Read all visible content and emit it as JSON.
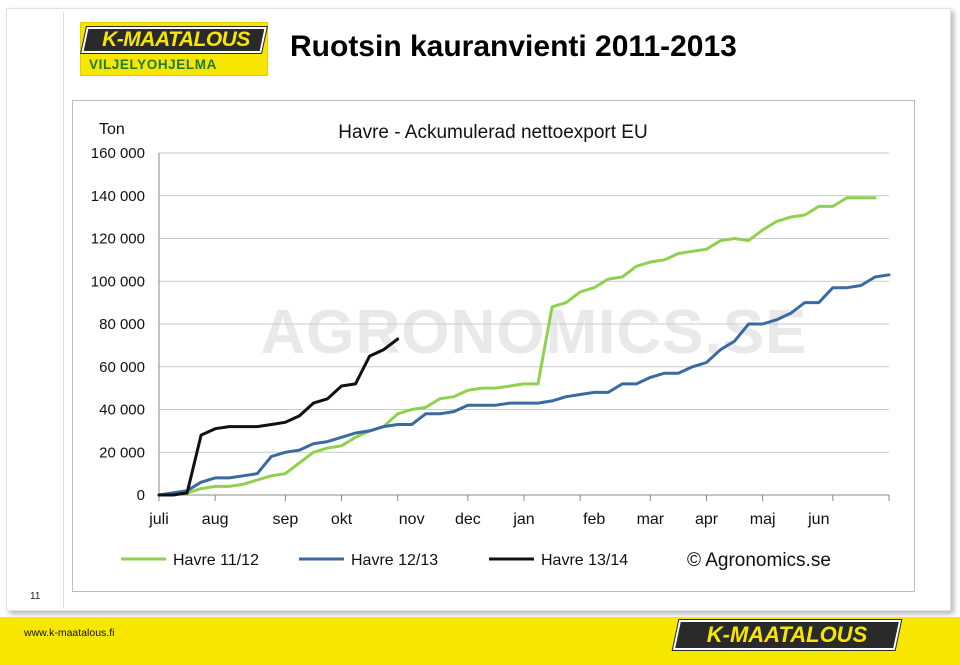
{
  "header": {
    "logo_brand": "K-MAATALOUS",
    "logo_sub": "VILJELYOHJELMA",
    "title": "Ruotsin kauranvienti 2011-2013"
  },
  "slide_number": "11",
  "footer": {
    "url": "www.k-maatalous.fi",
    "logo_brand": "K-MAATALOUS"
  },
  "colors": {
    "green": "#8fd14f",
    "blue": "#3a6aa1",
    "black": "#111111",
    "grid": "#c9c9c9",
    "logo_yellow": "#f6e600"
  },
  "chart_data": {
    "type": "line",
    "title": "Havre - Ackumulerad nettoexport EU",
    "ylabel": "Ton",
    "xlabel": "",
    "ylim": [
      0,
      160000
    ],
    "yticks": [
      0,
      20000,
      40000,
      60000,
      80000,
      100000,
      120000,
      140000,
      160000
    ],
    "ytick_labels": [
      "0",
      "20 000",
      "40 000",
      "60 000",
      "80 000",
      "100 000",
      "120 000",
      "140 000",
      "160 000"
    ],
    "x_unit": "week index from start of July",
    "xlim": [
      0,
      52
    ],
    "month_labels": [
      {
        "label": "juli",
        "x": 0
      },
      {
        "label": "aug",
        "x": 4
      },
      {
        "label": "sep",
        "x": 9
      },
      {
        "label": "okt",
        "x": 13
      },
      {
        "label": "nov",
        "x": 18
      },
      {
        "label": "dec",
        "x": 22
      },
      {
        "label": "jan",
        "x": 26
      },
      {
        "label": "feb",
        "x": 31
      },
      {
        "label": "mar",
        "x": 35
      },
      {
        "label": "apr",
        "x": 39
      },
      {
        "label": "maj",
        "x": 43
      },
      {
        "label": "jun",
        "x": 47
      }
    ],
    "month_ticks": [
      0,
      4,
      9,
      13,
      17,
      22,
      26,
      30,
      35,
      39,
      43,
      48,
      52
    ],
    "grid": true,
    "legend_position": "bottom",
    "copyright": "© Agronomics.se",
    "watermark": "AGRONOMICS.SE",
    "series": [
      {
        "name": "Havre 11/12",
        "color": "#8fd14f",
        "x": [
          0,
          1,
          2,
          3,
          4,
          5,
          6,
          7,
          8,
          9,
          10,
          11,
          12,
          13,
          14,
          15,
          16,
          17,
          18,
          19,
          20,
          21,
          22,
          23,
          24,
          25,
          26,
          27,
          28,
          29,
          30,
          31,
          32,
          33,
          34,
          35,
          36,
          37,
          38,
          39,
          40,
          41,
          42,
          43,
          44,
          45,
          46,
          47,
          48,
          49,
          50,
          51
        ],
        "values": [
          0,
          0,
          1000,
          3000,
          4000,
          4000,
          5000,
          7000,
          9000,
          10000,
          15000,
          20000,
          22000,
          23000,
          27000,
          30000,
          32000,
          38000,
          40000,
          41000,
          45000,
          46000,
          49000,
          50000,
          50000,
          51000,
          52000,
          52000,
          88000,
          90000,
          95000,
          97000,
          101000,
          102000,
          107000,
          109000,
          110000,
          113000,
          114000,
          115000,
          119000,
          120000,
          119000,
          124000,
          128000,
          130000,
          131000,
          135000,
          135000,
          139000,
          139000,
          139000
        ]
      },
      {
        "name": "Havre 12/13",
        "color": "#3a6aa1",
        "x": [
          0,
          1,
          2,
          3,
          4,
          5,
          6,
          7,
          8,
          9,
          10,
          11,
          12,
          13,
          14,
          15,
          16,
          17,
          18,
          19,
          20,
          21,
          22,
          23,
          24,
          25,
          26,
          27,
          28,
          29,
          30,
          31,
          32,
          33,
          34,
          35,
          36,
          37,
          38,
          39,
          40,
          41,
          42,
          43,
          44,
          45,
          46,
          47,
          48,
          49,
          50,
          51,
          52
        ],
        "values": [
          0,
          1000,
          2000,
          6000,
          8000,
          8000,
          9000,
          10000,
          18000,
          20000,
          21000,
          24000,
          25000,
          27000,
          29000,
          30000,
          32000,
          33000,
          33000,
          38000,
          38000,
          39000,
          42000,
          42000,
          42000,
          43000,
          43000,
          43000,
          44000,
          46000,
          47000,
          48000,
          48000,
          52000,
          52000,
          55000,
          57000,
          57000,
          60000,
          62000,
          68000,
          72000,
          80000,
          80000,
          82000,
          85000,
          90000,
          90000,
          97000,
          97000,
          98000,
          102000,
          103000
        ]
      },
      {
        "name": "Havre 13/14",
        "color": "#111111",
        "x": [
          0,
          1,
          2,
          3,
          4,
          5,
          6,
          7,
          8,
          9,
          10,
          11,
          12,
          13,
          14,
          15,
          16,
          17
        ],
        "values": [
          0,
          0,
          1000,
          28000,
          31000,
          32000,
          32000,
          32000,
          33000,
          34000,
          37000,
          43000,
          45000,
          51000,
          52000,
          65000,
          68000,
          73000
        ]
      }
    ]
  }
}
